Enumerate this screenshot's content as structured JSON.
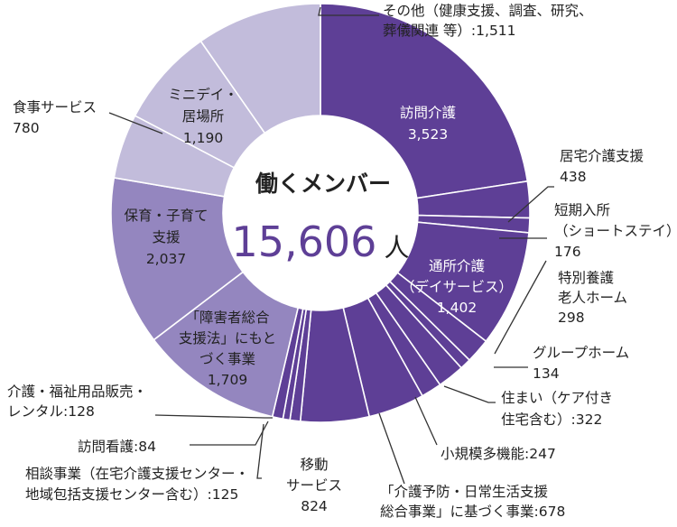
{
  "chart_data": {
    "type": "pie",
    "style": "donut",
    "title": "働くメンバー",
    "total": {
      "value": "15,606",
      "unit": "人"
    },
    "colors": {
      "dark": "#5e3f96",
      "mid": "#9486bf",
      "light": "#c2bcdb",
      "separator": "#ffffff",
      "title_total": "#5e3f96",
      "leader": "#333333"
    },
    "slices": [
      {
        "label": "訪問介護",
        "value": 3523,
        "tone": "dark"
      },
      {
        "label": "居宅介護支援",
        "value": 438,
        "tone": "dark"
      },
      {
        "label": "短期入所（ショートステイ）",
        "value": 176,
        "tone": "dark"
      },
      {
        "label": "通所介護（デイサービス）",
        "value": 1402,
        "tone": "dark"
      },
      {
        "label": "特別養護老人ホーム",
        "value": 298,
        "tone": "dark"
      },
      {
        "label": "グループホーム",
        "value": 134,
        "tone": "dark"
      },
      {
        "label": "住まい（ケア付き住宅含む）",
        "value": 322,
        "tone": "dark"
      },
      {
        "label": "小規模多機能",
        "value": 247,
        "tone": "dark"
      },
      {
        "label": "「介護予防・日常生活支援総合事業」に基づく事業",
        "value": 678,
        "tone": "dark"
      },
      {
        "label": "移動サービス",
        "value": 824,
        "tone": "dark"
      },
      {
        "label": "相談事業（在宅介護支援センター・地域包括支援センター含む）",
        "value": 125,
        "tone": "dark"
      },
      {
        "label": "訪問看護",
        "value": 84,
        "tone": "dark"
      },
      {
        "label": "介護・福祉用品販売・レンタル",
        "value": 128,
        "tone": "dark"
      },
      {
        "label": "「障害者総合支援法」にもとづく事業",
        "value": 1709,
        "tone": "mid"
      },
      {
        "label": "保育・子育て支援",
        "value": 2037,
        "tone": "mid"
      },
      {
        "label": "食事サービス",
        "value": 780,
        "tone": "light"
      },
      {
        "label": "ミニデイ・居場所",
        "value": 1190,
        "tone": "light"
      },
      {
        "label": "その他（健康支援、調査、研究、葬儀関連 等）",
        "value": 1511,
        "tone": "light"
      }
    ],
    "labels": {
      "houmon_kaigo": [
        "訪問介護",
        "3,523"
      ],
      "kyotaku": [
        "居宅介護支援",
        "438"
      ],
      "tanki": [
        "短期入所",
        "（ショートステイ）",
        "176"
      ],
      "tsusho": [
        "通所介護",
        "（デイサービス）",
        "1,402"
      ],
      "tokuyou": [
        "特別養護",
        "老人ホーム",
        "298"
      ],
      "group_home": [
        "グループホーム",
        "134"
      ],
      "sumai": [
        "住まい（ケア付き",
        "住宅含む）:322"
      ],
      "shokibo": [
        "小規模多機能:247"
      ],
      "sogo_jigyo": [
        "「介護予防・日常生活支援",
        "総合事業」に基づく事業:678"
      ],
      "idou": [
        "移動",
        "サービス",
        "824"
      ],
      "soudan": [
        "相談事業（在宅介護支援センター・",
        "地域包括支援センター含む）:125"
      ],
      "houmon_kango": [
        "訪問看護:84"
      ],
      "hanbai": [
        "介護・福祉用品販売・",
        "レンタル:128"
      ],
      "shogaisha": [
        "「障害者総合",
        "支援法」にもと",
        "づく事業",
        "1,709"
      ],
      "hoiku": [
        "保育・子育て",
        "支援",
        "2,037"
      ],
      "shokuji": [
        "食事サービス",
        "780"
      ],
      "minidei": [
        "ミニデイ・",
        "居場所",
        "1,190"
      ],
      "sonota": [
        "その他（健康支援、調査、研究、",
        "葬儀関連 等）:1,511"
      ]
    }
  }
}
